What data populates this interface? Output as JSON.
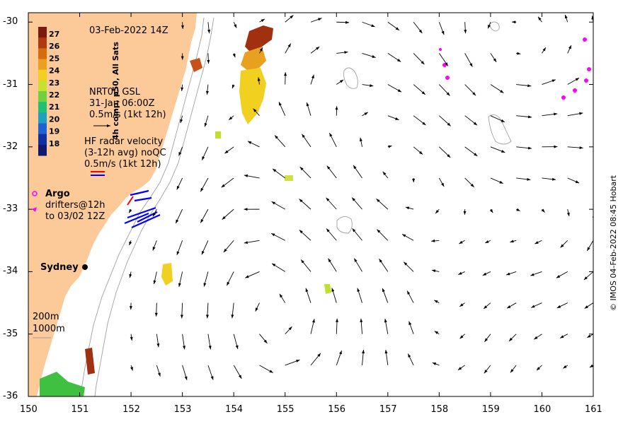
{
  "colors": {
    "land": "#fcc998",
    "ocean": "#ffffff",
    "argo": "#ff00ff",
    "hf_red": "#ff0000",
    "hf_blue": "#0000ff",
    "contour": "#a0a0a0",
    "arrow": "#000000"
  },
  "map": {
    "date_title": "03-Feb-2022 14Z",
    "lon_range": [
      150,
      161
    ],
    "lat_range": [
      -36,
      -29.85
    ],
    "lon_ticks": [
      "150",
      "151",
      "152",
      "153",
      "154",
      "155",
      "156",
      "157",
      "158",
      "159",
      "160",
      "161"
    ],
    "lat_ticks": [
      "-30",
      "-31",
      "-32",
      "-33",
      "-34",
      "-35",
      "-36"
    ],
    "credit": "© IMOS 04-Feb-2022 08:45 Hobart"
  },
  "colorbar": {
    "label": "4h comp, p50, All Sats",
    "tick_labels": [
      "27",
      "26",
      "25",
      "24",
      "23",
      "22",
      "21",
      "20",
      "19",
      "18"
    ]
  },
  "annotations": {
    "gsl": [
      "NRT00 GSL",
      "31-Jan 06:00Z",
      "0.5m/s (1kt 12h)"
    ],
    "hf": [
      "HF radar velocity",
      "(3-12h avg) noQC",
      "0.5m/s (1kt 12h)"
    ],
    "argo_title": "Argo",
    "drifters": [
      "drifters@12h",
      "to 03/02 12Z"
    ],
    "sydney": "Sydney",
    "depth_200": "200m",
    "depth_1000": "1000m"
  }
}
